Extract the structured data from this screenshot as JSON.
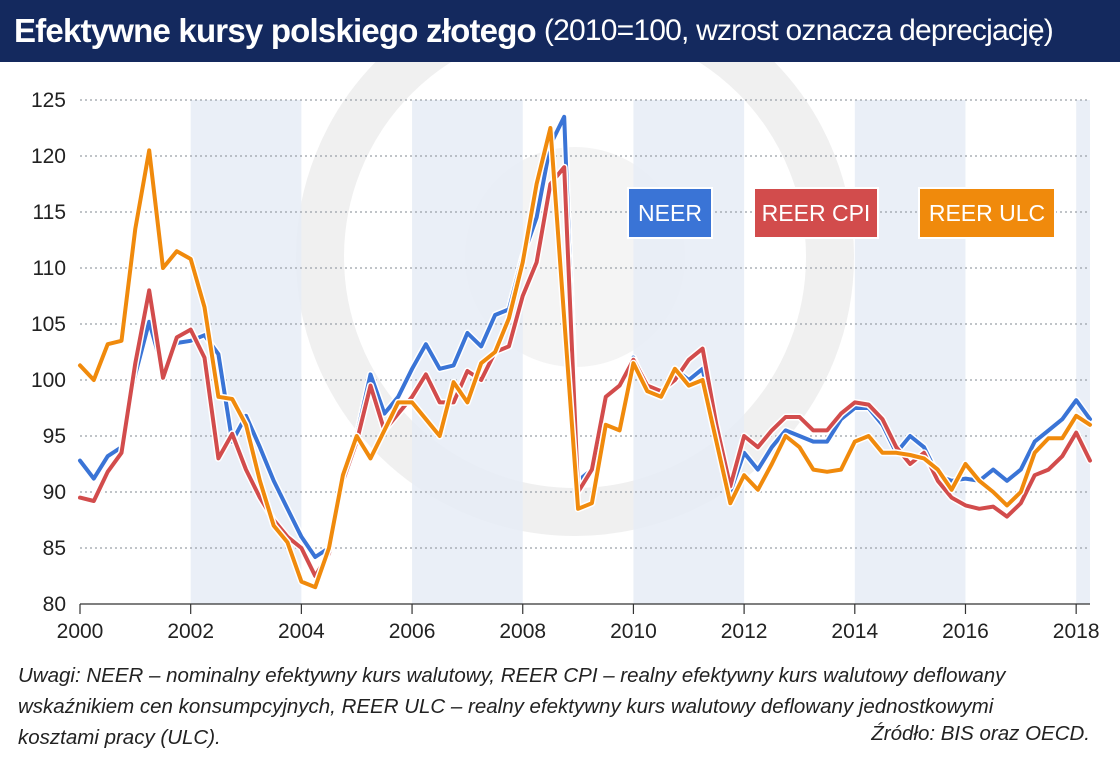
{
  "header": {
    "title": "Efektywne kursy polskiego złotego",
    "subtitle": "(2010=100, wzrost oznacza deprecjację)"
  },
  "notes": {
    "line1": "Uwagi: NEER – nominalny efektywny kurs walutowy, REER CPI – realny efektywny kurs walutowy deflowany",
    "line2": "wskaźnikiem cen konsumpcyjnych, REER ULC – realny efektywny kurs walutowy deflowany jednostkowymi",
    "line3": "kosztami pracy (ULC)."
  },
  "source": "Źródło: BIS oraz OECD.",
  "colors": {
    "background": "#ffffff",
    "header": "#14295e",
    "neer": "#3a74d6",
    "reer_cpi": "#d24c4c",
    "reer_ulc": "#f08a0c",
    "shade": "#e6ecf6",
    "grid": "#9aa0a8"
  },
  "chart_data": {
    "type": "line",
    "ylim": [
      80,
      125
    ],
    "yticks": [
      "80",
      "85",
      "90",
      "95",
      "100",
      "105",
      "110",
      "115",
      "120",
      "125"
    ],
    "xlim": [
      2000,
      2018.25
    ],
    "xticks": [
      "2000",
      "2002",
      "2004",
      "2006",
      "2008",
      "2010",
      "2012",
      "2014",
      "2016",
      "2018"
    ],
    "shaded_year_ranges": [
      [
        2002,
        2004
      ],
      [
        2006,
        2008
      ],
      [
        2010,
        2012
      ],
      [
        2014,
        2016
      ],
      [
        2018,
        2018.25
      ]
    ],
    "grid": "horizontal dotted",
    "x_quarters": [
      2000.0,
      2000.25,
      2000.5,
      2000.75,
      2001.0,
      2001.25,
      2001.5,
      2001.75,
      2002.0,
      2002.25,
      2002.5,
      2002.75,
      2003.0,
      2003.25,
      2003.5,
      2003.75,
      2004.0,
      2004.25,
      2004.5,
      2004.75,
      2005.0,
      2005.25,
      2005.5,
      2005.75,
      2006.0,
      2006.25,
      2006.5,
      2006.75,
      2007.0,
      2007.25,
      2007.5,
      2007.75,
      2008.0,
      2008.25,
      2008.5,
      2008.75,
      2009.0,
      2009.25,
      2009.5,
      2009.75,
      2010.0,
      2010.25,
      2010.5,
      2010.75,
      2011.0,
      2011.25,
      2011.5,
      2011.75,
      2012.0,
      2012.25,
      2012.5,
      2012.75,
      2013.0,
      2013.25,
      2013.5,
      2013.75,
      2014.0,
      2014.25,
      2014.5,
      2014.75,
      2015.0,
      2015.25,
      2015.5,
      2015.75,
      2016.0,
      2016.25,
      2016.5,
      2016.75,
      2017.0,
      2017.25,
      2017.5,
      2017.75,
      2018.0,
      2018.25
    ],
    "series": [
      {
        "name": "NEER",
        "color": "#3a74d6",
        "values": [
          92.8,
          91.2,
          93.2,
          94.0,
          100.5,
          105.2,
          100.8,
          103.3,
          103.5,
          104.0,
          102.3,
          94.5,
          96.8,
          94.0,
          91.0,
          88.5,
          86.0,
          84.2,
          85.0,
          91.5,
          95.0,
          100.5,
          97.0,
          98.5,
          101.0,
          103.2,
          101.0,
          101.3,
          104.2,
          103.0,
          105.8,
          106.3,
          111.0,
          114.5,
          121.0,
          123.5,
          91.0,
          92.0,
          98.5,
          99.5,
          102.0,
          99.0,
          98.5,
          101.0,
          100.0,
          101.0,
          95.0,
          90.0,
          93.5,
          92.0,
          94.0,
          95.5,
          95.0,
          94.5,
          94.5,
          96.5,
          97.5,
          97.5,
          96.0,
          93.5,
          95.0,
          94.0,
          91.5,
          91.0,
          91.2,
          91.0,
          92.0,
          91.0,
          92.0,
          94.5,
          95.5,
          96.5,
          98.2,
          96.5
        ]
      },
      {
        "name": "REER CPI",
        "color": "#d24c4c",
        "values": [
          89.5,
          89.2,
          91.8,
          93.5,
          101.5,
          108.0,
          100.2,
          103.8,
          104.5,
          102.0,
          93.0,
          95.2,
          92.0,
          89.5,
          87.5,
          86.0,
          85.0,
          82.5,
          84.5,
          91.0,
          94.5,
          99.5,
          95.5,
          97.0,
          98.5,
          100.5,
          98.0,
          98.0,
          100.8,
          100.0,
          102.5,
          103.0,
          107.5,
          110.5,
          117.5,
          119.0,
          90.0,
          92.0,
          98.5,
          99.5,
          101.8,
          99.5,
          99.0,
          100.0,
          101.8,
          102.8,
          96.0,
          90.5,
          95.0,
          94.0,
          95.5,
          96.7,
          96.7,
          95.5,
          95.5,
          97.0,
          98.0,
          97.8,
          96.5,
          94.0,
          92.5,
          93.5,
          91.0,
          89.5,
          88.8,
          88.5,
          88.7,
          87.8,
          89.0,
          91.5,
          92.0,
          93.2,
          95.3,
          92.8
        ]
      },
      {
        "name": "REER ULC",
        "color": "#f08a0c",
        "values": [
          101.3,
          100.0,
          103.2,
          103.5,
          113.5,
          120.5,
          110.0,
          111.5,
          110.8,
          106.5,
          98.5,
          98.3,
          96.0,
          91.0,
          87.0,
          85.5,
          82.0,
          81.5,
          85.0,
          91.5,
          95.0,
          93.0,
          95.5,
          98.0,
          98.0,
          96.5,
          95.0,
          99.8,
          98.0,
          101.5,
          102.5,
          105.5,
          110.5,
          117.5,
          122.5,
          105.5,
          88.5,
          89.0,
          96.0,
          95.5,
          101.5,
          99.0,
          98.5,
          101.0,
          99.5,
          100.0,
          94.5,
          89.0,
          91.5,
          90.2,
          92.5,
          95.0,
          94.0,
          92.0,
          91.8,
          92.0,
          94.5,
          95.0,
          93.5,
          93.5,
          93.3,
          93.0,
          92.0,
          90.2,
          92.5,
          91.0,
          90.0,
          88.8,
          90.0,
          93.5,
          94.8,
          94.8,
          96.8,
          96.0
        ]
      }
    ],
    "legend": [
      {
        "label": "NEER",
        "color": "#3a74d6"
      },
      {
        "label": "REER CPI",
        "color": "#d24c4c"
      },
      {
        "label": "REER ULC",
        "color": "#f08a0c"
      }
    ],
    "legend_placement": "inside-top"
  }
}
